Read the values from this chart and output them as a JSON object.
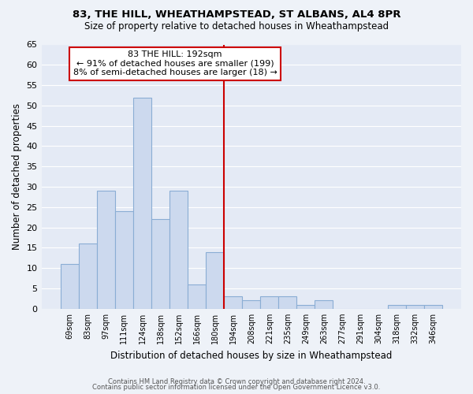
{
  "title1": "83, THE HILL, WHEATHAMPSTEAD, ST ALBANS, AL4 8PR",
  "title2": "Size of property relative to detached houses in Wheathampstead",
  "xlabel": "Distribution of detached houses by size in Wheathampstead",
  "ylabel": "Number of detached properties",
  "bar_labels": [
    "69sqm",
    "83sqm",
    "97sqm",
    "111sqm",
    "124sqm",
    "138sqm",
    "152sqm",
    "166sqm",
    "180sqm",
    "194sqm",
    "208sqm",
    "221sqm",
    "235sqm",
    "249sqm",
    "263sqm",
    "277sqm",
    "291sqm",
    "304sqm",
    "318sqm",
    "332sqm",
    "346sqm"
  ],
  "bar_values": [
    11,
    16,
    29,
    24,
    52,
    22,
    29,
    6,
    14,
    3,
    2,
    3,
    3,
    1,
    2,
    0,
    0,
    0,
    1,
    1,
    1
  ],
  "bar_color": "#ccd9ee",
  "bar_edge_color": "#8aadd4",
  "reference_line_color": "#cc0000",
  "annotation_title": "83 THE HILL: 192sqm",
  "annotation_line1": "← 91% of detached houses are smaller (199)",
  "annotation_line2": "8% of semi-detached houses are larger (18) →",
  "annotation_box_color": "#ffffff",
  "annotation_box_edge_color": "#cc0000",
  "ylim": [
    0,
    65
  ],
  "yticks": [
    0,
    5,
    10,
    15,
    20,
    25,
    30,
    35,
    40,
    45,
    50,
    55,
    60,
    65
  ],
  "background_color": "#eef2f8",
  "plot_bg_color": "#e4eaf5",
  "grid_color": "#ffffff",
  "footer1": "Contains HM Land Registry data © Crown copyright and database right 2024.",
  "footer2": "Contains public sector information licensed under the Open Government Licence v3.0."
}
